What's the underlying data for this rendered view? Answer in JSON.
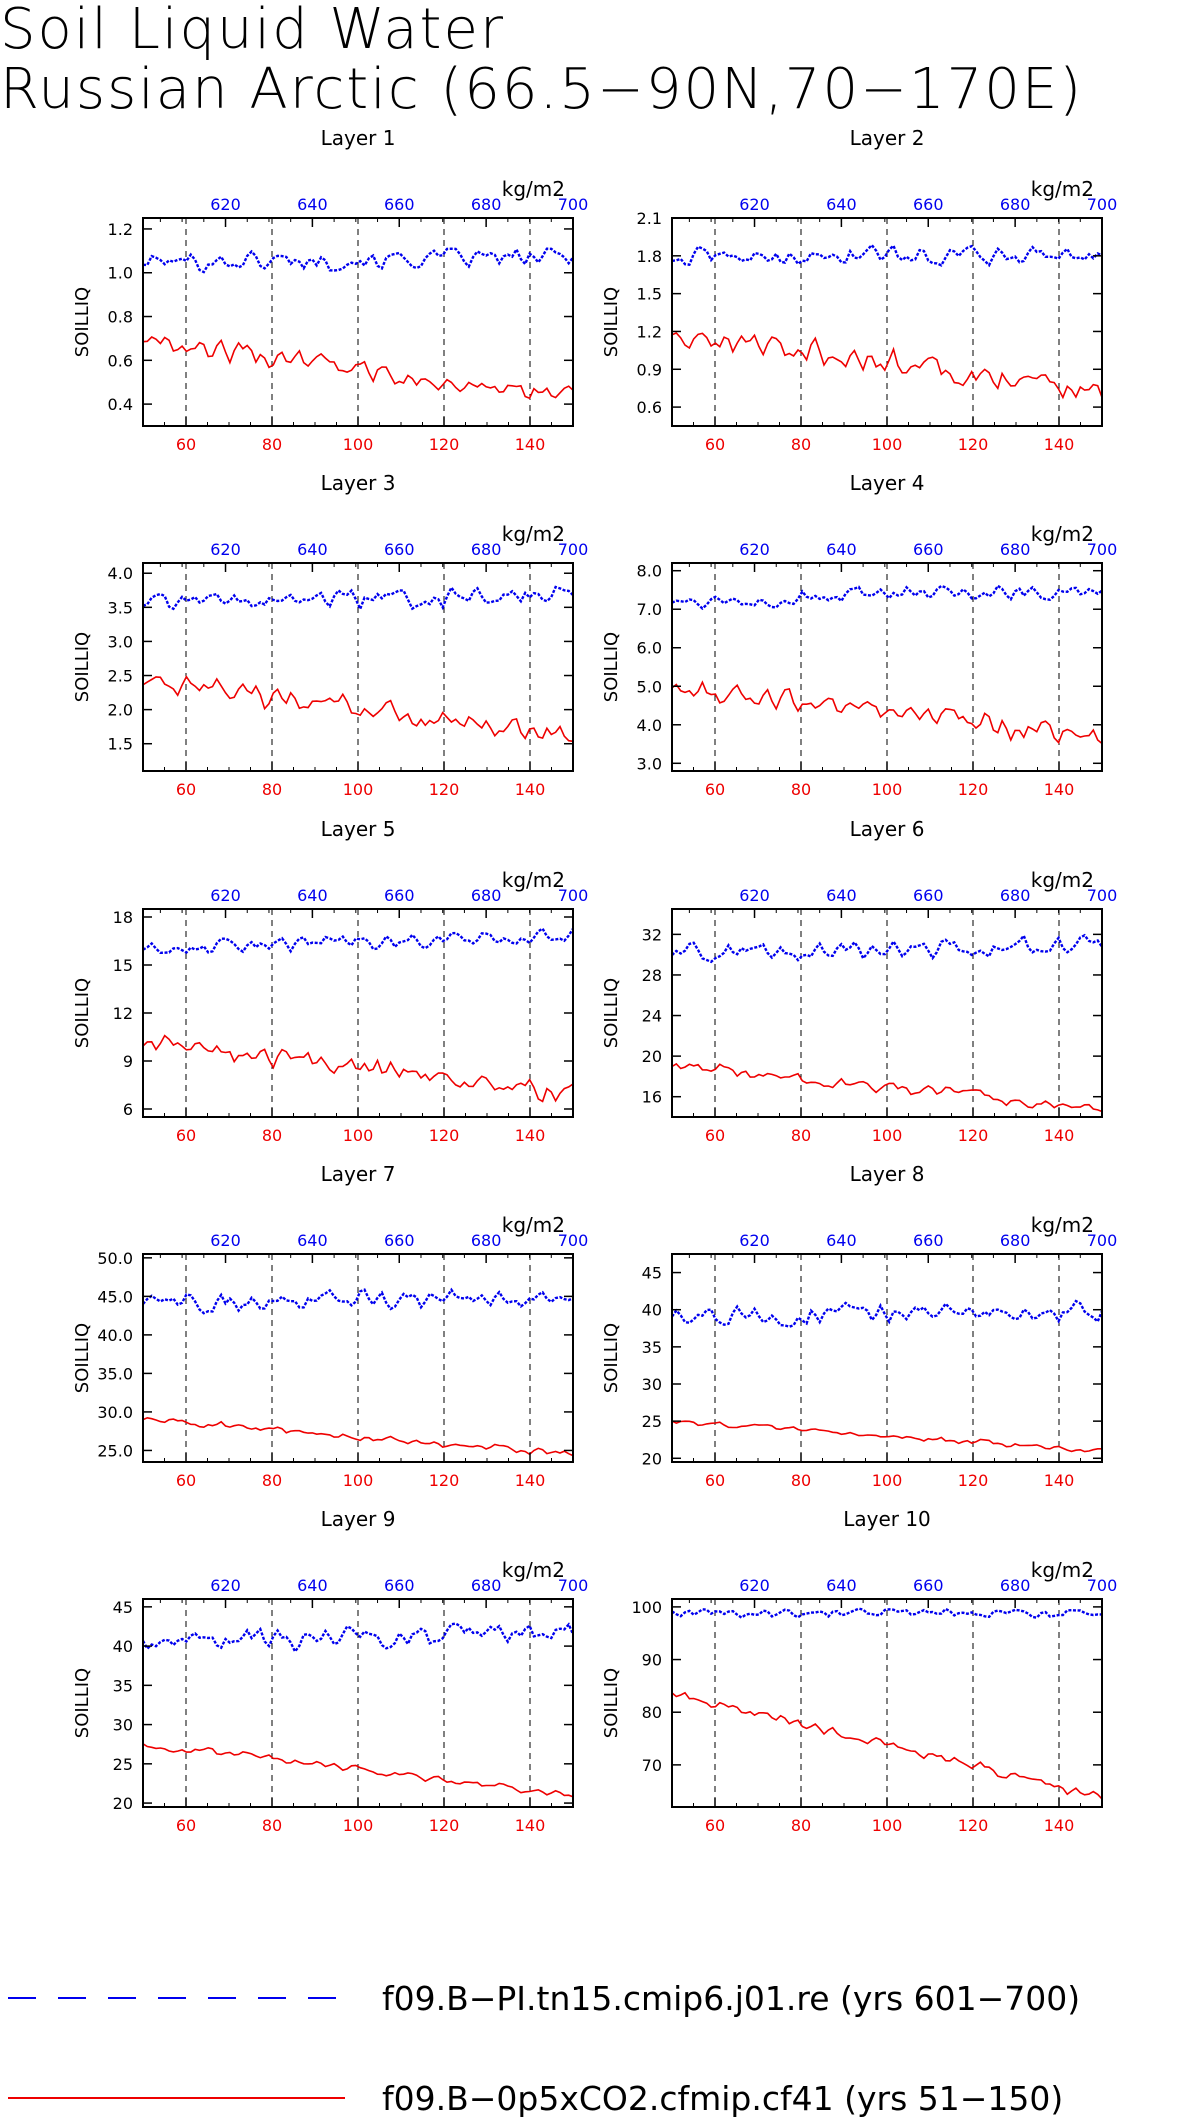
{
  "title_lines": [
    "Soil Liquid Water",
    "Russian Arctic (66.5−90N,70−170E)"
  ],
  "colors": {
    "blue": "#0000ee",
    "red": "#ee0000",
    "black": "#000000"
  },
  "legend": [
    {
      "label": "f09.B−PI.tn15.cmip6.j01.re (yrs 601−700)",
      "color": "#0000ee",
      "style": "dashed"
    },
    {
      "label": "f09.B−0p5xCO2.cfmip.cf41 (yrs 51−150)",
      "color": "#ee0000",
      "style": "solid"
    }
  ],
  "chart_data": [
    {
      "type": "line",
      "title": "Layer 1",
      "ylabel": "SOILLIQ",
      "top_axis_unit": "kg/m2",
      "ylim": [
        0.3,
        1.25
      ],
      "yticks": [
        "0.4",
        "0.6",
        "0.8",
        "1.0",
        "1.2"
      ],
      "xlim_bottom": [
        50,
        150
      ],
      "xticks_bottom": [
        "60",
        "80",
        "100",
        "120",
        "140"
      ],
      "xlim_top": [
        601,
        700
      ],
      "xticks_top": [
        "620",
        "640",
        "660",
        "680",
        "700"
      ],
      "series": [
        {
          "name": "f09.B−PI.tn15.cmip6.j01.re (yrs 601−700)",
          "axis": "top",
          "y_start": 1.05,
          "y_end": 1.07,
          "y_amp": 0.055,
          "y_min": 0.92,
          "y_max": 1.17,
          "seed": 101
        },
        {
          "name": "f09.B−0p5xCO2.cfmip.cf41 (yrs 51−150)",
          "axis": "bottom",
          "y_start": 0.7,
          "y_end": 0.42,
          "y_amp": 0.06,
          "y_min": 0.3,
          "y_max": 0.78,
          "seed": 102
        }
      ]
    },
    {
      "type": "line",
      "title": "Layer 2",
      "ylabel": "SOILLIQ",
      "top_axis_unit": "kg/m2",
      "ylim": [
        0.45,
        2.1
      ],
      "yticks": [
        "0.6",
        "0.9",
        "1.2",
        "1.5",
        "1.8",
        "2.1"
      ],
      "xlim_bottom": [
        50,
        150
      ],
      "xticks_bottom": [
        "60",
        "80",
        "100",
        "120",
        "140"
      ],
      "xlim_top": [
        601,
        700
      ],
      "xticks_top": [
        "620",
        "640",
        "660",
        "680",
        "700"
      ],
      "series": [
        {
          "name": "f09.B−PI.tn15.cmip6.j01.re (yrs 601−700)",
          "axis": "top",
          "y_start": 1.78,
          "y_end": 1.82,
          "y_amp": 0.1,
          "y_min": 1.45,
          "y_max": 2.02,
          "seed": 201
        },
        {
          "name": "f09.B−0p5xCO2.cfmip.cf41 (yrs 51−150)",
          "axis": "bottom",
          "y_start": 1.2,
          "y_end": 0.72,
          "y_amp": 0.13,
          "y_min": 0.5,
          "y_max": 1.32,
          "seed": 202
        }
      ]
    },
    {
      "type": "line",
      "title": "Layer 3",
      "ylabel": "SOILLIQ",
      "top_axis_unit": "kg/m2",
      "ylim": [
        1.1,
        4.15
      ],
      "yticks": [
        "1.5",
        "2.0",
        "2.5",
        "3.0",
        "3.5",
        "4.0"
      ],
      "xlim_bottom": [
        50,
        150
      ],
      "xticks_bottom": [
        "60",
        "80",
        "100",
        "120",
        "140"
      ],
      "xlim_top": [
        601,
        700
      ],
      "xticks_top": [
        "620",
        "640",
        "660",
        "680",
        "700"
      ],
      "series": [
        {
          "name": "f09.B−PI.tn15.cmip6.j01.re (yrs 601−700)",
          "axis": "top",
          "y_start": 3.55,
          "y_end": 3.7,
          "y_amp": 0.17,
          "y_min": 2.95,
          "y_max": 4.05,
          "seed": 301
        },
        {
          "name": "f09.B−0p5xCO2.cfmip.cf41 (yrs 51−150)",
          "axis": "bottom",
          "y_start": 2.4,
          "y_end": 1.6,
          "y_amp": 0.22,
          "y_min": 1.15,
          "y_max": 2.75,
          "seed": 302
        }
      ]
    },
    {
      "type": "line",
      "title": "Layer 4",
      "ylabel": "SOILLIQ",
      "top_axis_unit": "kg/m2",
      "ylim": [
        2.8,
        8.2
      ],
      "yticks": [
        "3.0",
        "4.0",
        "5.0",
        "6.0",
        "7.0",
        "8.0"
      ],
      "xlim_bottom": [
        50,
        150
      ],
      "xticks_bottom": [
        "60",
        "80",
        "100",
        "120",
        "140"
      ],
      "xlim_top": [
        601,
        700
      ],
      "xticks_top": [
        "620",
        "640",
        "660",
        "680",
        "700"
      ],
      "series": [
        {
          "name": "f09.B−PI.tn15.cmip6.j01.re (yrs 601−700)",
          "axis": "top",
          "y_start": 7.2,
          "y_end": 7.5,
          "y_amp": 0.25,
          "y_min": 6.0,
          "y_max": 8.0,
          "seed": 401
        },
        {
          "name": "f09.B−0p5xCO2.cfmip.cf41 (yrs 51−150)",
          "axis": "bottom",
          "y_start": 5.0,
          "y_end": 3.6,
          "y_amp": 0.35,
          "y_min": 3.0,
          "y_max": 5.6,
          "seed": 402
        }
      ]
    },
    {
      "type": "line",
      "title": "Layer 5",
      "ylabel": "SOILLIQ",
      "top_axis_unit": "kg/m2",
      "ylim": [
        5.5,
        18.5
      ],
      "yticks": [
        "6",
        "9",
        "12",
        "15",
        "18"
      ],
      "xlim_bottom": [
        50,
        150
      ],
      "xticks_bottom": [
        "60",
        "80",
        "100",
        "120",
        "140"
      ],
      "xlim_top": [
        601,
        700
      ],
      "xticks_top": [
        "620",
        "640",
        "660",
        "680",
        "700"
      ],
      "series": [
        {
          "name": "f09.B−PI.tn15.cmip6.j01.re (yrs 601−700)",
          "axis": "top",
          "y_start": 16.0,
          "y_end": 16.8,
          "y_amp": 0.55,
          "y_min": 13.3,
          "y_max": 17.8,
          "seed": 501
        },
        {
          "name": "f09.B−0p5xCO2.cfmip.cf41 (yrs 51−150)",
          "axis": "bottom",
          "y_start": 10.0,
          "y_end": 7.0,
          "y_amp": 0.8,
          "y_min": 6.2,
          "y_max": 11.7,
          "seed": 502
        }
      ]
    },
    {
      "type": "line",
      "title": "Layer 6",
      "ylabel": "SOILLIQ",
      "top_axis_unit": "kg/m2",
      "ylim": [
        14,
        34.5
      ],
      "yticks": [
        "16",
        "20",
        "24",
        "28",
        "32"
      ],
      "xlim_bottom": [
        50,
        150
      ],
      "xticks_bottom": [
        "60",
        "80",
        "100",
        "120",
        "140"
      ],
      "xlim_top": [
        601,
        700
      ],
      "xticks_top": [
        "620",
        "640",
        "660",
        "680",
        "700"
      ],
      "series": [
        {
          "name": "f09.B−PI.tn15.cmip6.j01.re (yrs 601−700)",
          "axis": "top",
          "y_start": 30.0,
          "y_end": 31.0,
          "y_amp": 1.2,
          "y_min": 26.0,
          "y_max": 33.5,
          "seed": 601
        },
        {
          "name": "f09.B−0p5xCO2.cfmip.cf41 (yrs 51−150)",
          "axis": "bottom",
          "y_start": 19.0,
          "y_end": 14.8,
          "y_amp": 0.7,
          "y_min": 14.3,
          "y_max": 20.7,
          "seed": 602
        }
      ]
    },
    {
      "type": "line",
      "title": "Layer 7",
      "ylabel": "SOILLIQ",
      "top_axis_unit": "kg/m2",
      "ylim": [
        23.5,
        50.5
      ],
      "yticks": [
        "25.0",
        "30.0",
        "35.0",
        "40.0",
        "45.0",
        "50.0"
      ],
      "xlim_bottom": [
        50,
        150
      ],
      "xticks_bottom": [
        "60",
        "80",
        "100",
        "120",
        "140"
      ],
      "xlim_top": [
        601,
        700
      ],
      "xticks_top": [
        "620",
        "640",
        "660",
        "680",
        "700"
      ],
      "series": [
        {
          "name": "f09.B−PI.tn15.cmip6.j01.re (yrs 601−700)",
          "axis": "top",
          "y_start": 44.0,
          "y_end": 45.0,
          "y_amp": 1.6,
          "y_min": 39.5,
          "y_max": 49.5,
          "seed": 701
        },
        {
          "name": "f09.B−0p5xCO2.cfmip.cf41 (yrs 51−150)",
          "axis": "bottom",
          "y_start": 29.0,
          "y_end": 24.5,
          "y_amp": 0.55,
          "y_min": 24.0,
          "y_max": 30.8,
          "seed": 702
        }
      ]
    },
    {
      "type": "line",
      "title": "Layer 8",
      "ylabel": "SOILLIQ",
      "top_axis_unit": "kg/m2",
      "ylim": [
        19.5,
        47.5
      ],
      "yticks": [
        "20",
        "25",
        "30",
        "35",
        "40",
        "45"
      ],
      "xlim_bottom": [
        50,
        150
      ],
      "xticks_bottom": [
        "60",
        "80",
        "100",
        "120",
        "140"
      ],
      "xlim_top": [
        601,
        700
      ],
      "xticks_top": [
        "620",
        "640",
        "660",
        "680",
        "700"
      ],
      "series": [
        {
          "name": "f09.B−PI.tn15.cmip6.j01.re (yrs 601−700)",
          "axis": "top",
          "y_start": 39.0,
          "y_end": 40.0,
          "y_amp": 1.7,
          "y_min": 36.0,
          "y_max": 46.0,
          "seed": 801
        },
        {
          "name": "f09.B−0p5xCO2.cfmip.cf41 (yrs 51−150)",
          "axis": "bottom",
          "y_start": 25.0,
          "y_end": 21.0,
          "y_amp": 0.45,
          "y_min": 20.8,
          "y_max": 25.8,
          "seed": 802
        }
      ]
    },
    {
      "type": "line",
      "title": "Layer 9",
      "ylabel": "SOILLIQ",
      "top_axis_unit": "kg/m2",
      "ylim": [
        19.5,
        46
      ],
      "yticks": [
        "20",
        "25",
        "30",
        "35",
        "40",
        "45"
      ],
      "xlim_bottom": [
        50,
        150
      ],
      "xticks_bottom": [
        "60",
        "80",
        "100",
        "120",
        "140"
      ],
      "xlim_top": [
        601,
        700
      ],
      "xticks_top": [
        "620",
        "640",
        "660",
        "680",
        "700"
      ],
      "series": [
        {
          "name": "f09.B−PI.tn15.cmip6.j01.re (yrs 601−700)",
          "axis": "top",
          "y_start": 40.5,
          "y_end": 42.0,
          "y_amp": 1.8,
          "y_min": 37.5,
          "y_max": 44.8,
          "seed": 901
        },
        {
          "name": "f09.B−0p5xCO2.cfmip.cf41 (yrs 51−150)",
          "axis": "bottom",
          "y_start": 27.5,
          "y_end": 21.0,
          "y_amp": 0.6,
          "y_min": 20.8,
          "y_max": 29.0,
          "seed": 902
        }
      ]
    },
    {
      "type": "line",
      "title": "Layer 10",
      "ylabel": "SOILLIQ",
      "top_axis_unit": "kg/m2",
      "ylim": [
        62,
        101.5
      ],
      "yticks": [
        "70",
        "80",
        "90",
        "100"
      ],
      "xlim_bottom": [
        50,
        150
      ],
      "xticks_bottom": [
        "60",
        "80",
        "100",
        "120",
        "140"
      ],
      "xlim_top": [
        601,
        700
      ],
      "xticks_top": [
        "620",
        "640",
        "660",
        "680",
        "700"
      ],
      "series": [
        {
          "name": "f09.B−PI.tn15.cmip6.j01.re (yrs 601−700)",
          "axis": "top",
          "y_start": 99.0,
          "y_end": 98.8,
          "y_amp": 1.1,
          "y_min": 94.0,
          "y_max": 100.3,
          "seed": 1001
        },
        {
          "name": "f09.B−0p5xCO2.cfmip.cf41 (yrs 51−150)",
          "axis": "bottom",
          "y_start": 83.5,
          "y_end": 64.0,
          "y_amp": 1.2,
          "y_min": 63.5,
          "y_max": 85.0,
          "seed": 1002
        }
      ]
    }
  ]
}
